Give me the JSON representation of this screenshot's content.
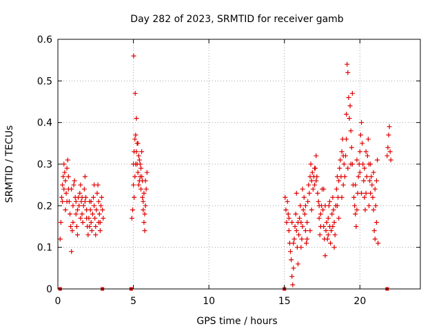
{
  "chart_data": {
    "type": "scatter",
    "title": "Day 282 of 2023, SRMTID for receiver gamb",
    "xlabel": "GPS time / hours",
    "ylabel": "SRMTID / TECUs",
    "xlim": [
      0,
      24
    ],
    "ylim": [
      0,
      0.6
    ],
    "xticks": [
      0,
      5,
      10,
      15,
      20
    ],
    "xtick_labels": [
      "0",
      "5",
      "10",
      "15",
      "20"
    ],
    "yticks": [
      0,
      0.1,
      0.2,
      0.3,
      0.4,
      0.5,
      0.6
    ],
    "ytick_labels": [
      "0",
      "0.1",
      "0.2",
      "0.3",
      "0.4",
      "0.5",
      "0.6"
    ],
    "grid": true,
    "marker": "+",
    "color": "#e00000",
    "series": [
      {
        "name": "SRMTID",
        "points": [
          [
            0.15,
            0.12
          ],
          [
            0.2,
            0.16
          ],
          [
            0.25,
            0.22
          ],
          [
            0.3,
            0.25
          ],
          [
            0.35,
            0.27
          ],
          [
            0.4,
            0.24
          ],
          [
            0.45,
            0.28
          ],
          [
            0.5,
            0.26
          ],
          [
            0.55,
            0.23
          ],
          [
            0.6,
            0.29
          ],
          [
            0.65,
            0.31
          ],
          [
            0.7,
            0.27
          ],
          [
            0.75,
            0.21
          ],
          [
            0.8,
            0.18
          ],
          [
            0.85,
            0.15
          ],
          [
            0.9,
            0.09
          ],
          [
            0.95,
            0.14
          ],
          [
            1.0,
            0.2
          ],
          [
            1.05,
            0.25
          ],
          [
            1.1,
            0.26
          ],
          [
            1.15,
            0.22
          ],
          [
            1.2,
            0.18
          ],
          [
            1.25,
            0.15
          ],
          [
            1.3,
            0.19
          ],
          [
            1.35,
            0.22
          ],
          [
            1.4,
            0.2
          ],
          [
            1.45,
            0.23
          ],
          [
            1.5,
            0.25
          ],
          [
            1.55,
            0.21
          ],
          [
            1.6,
            0.18
          ],
          [
            1.65,
            0.16
          ],
          [
            1.7,
            0.2
          ],
          [
            1.75,
            0.24
          ],
          [
            1.8,
            0.27
          ],
          [
            1.85,
            0.22
          ],
          [
            1.9,
            0.19
          ],
          [
            1.95,
            0.15
          ],
          [
            2.0,
            0.13
          ],
          [
            2.05,
            0.17
          ],
          [
            2.1,
            0.21
          ],
          [
            2.15,
            0.19
          ],
          [
            2.2,
            0.16
          ],
          [
            2.25,
            0.14
          ],
          [
            2.3,
            0.18
          ],
          [
            2.35,
            0.22
          ],
          [
            2.4,
            0.2
          ],
          [
            2.45,
            0.17
          ],
          [
            2.5,
            0.15
          ],
          [
            2.55,
            0.19
          ],
          [
            2.6,
            0.23
          ],
          [
            2.65,
            0.25
          ],
          [
            2.7,
            0.21
          ],
          [
            2.75,
            0.18
          ],
          [
            2.8,
            0.16
          ],
          [
            2.85,
            0.2
          ],
          [
            2.9,
            0.22
          ],
          [
            2.95,
            0.19
          ],
          [
            3.0,
            0.17
          ],
          [
            0.3,
            0.21
          ],
          [
            0.5,
            0.19
          ],
          [
            0.7,
            0.24
          ],
          [
            1.0,
            0.16
          ],
          [
            1.3,
            0.13
          ],
          [
            1.6,
            0.22
          ],
          [
            1.9,
            0.17
          ],
          [
            2.2,
            0.21
          ],
          [
            2.5,
            0.13
          ],
          [
            2.8,
            0.14
          ],
          [
            0.4,
            0.3
          ],
          [
            0.6,
            0.21
          ],
          [
            0.9,
            0.24
          ],
          [
            1.2,
            0.21
          ],
          [
            1.5,
            0.17
          ],
          [
            1.8,
            0.21
          ],
          [
            2.1,
            0.15
          ],
          [
            2.4,
            0.25
          ],
          [
            2.7,
            0.16
          ],
          [
            4.9,
            0.17
          ],
          [
            4.95,
            0.19
          ],
          [
            5.0,
            0.25
          ],
          [
            5.02,
            0.56
          ],
          [
            5.05,
            0.33
          ],
          [
            5.1,
            0.36
          ],
          [
            5.12,
            0.47
          ],
          [
            5.15,
            0.3
          ],
          [
            5.2,
            0.41
          ],
          [
            5.25,
            0.35
          ],
          [
            5.3,
            0.28
          ],
          [
            5.35,
            0.32
          ],
          [
            5.4,
            0.26
          ],
          [
            5.45,
            0.3
          ],
          [
            5.5,
            0.24
          ],
          [
            5.55,
            0.27
          ],
          [
            5.6,
            0.22
          ],
          [
            5.65,
            0.19
          ],
          [
            5.7,
            0.16
          ],
          [
            5.75,
            0.14
          ],
          [
            5.8,
            0.2
          ],
          [
            5.85,
            0.24
          ],
          [
            5.9,
            0.28
          ],
          [
            5.0,
            0.3
          ],
          [
            5.1,
            0.27
          ],
          [
            5.2,
            0.33
          ],
          [
            5.3,
            0.35
          ],
          [
            5.4,
            0.31
          ],
          [
            5.5,
            0.29
          ],
          [
            5.6,
            0.26
          ],
          [
            5.7,
            0.23
          ],
          [
            5.8,
            0.26
          ],
          [
            5.05,
            0.22
          ],
          [
            5.25,
            0.3
          ],
          [
            5.45,
            0.27
          ],
          [
            5.65,
            0.21
          ],
          [
            5.75,
            0.18
          ],
          [
            5.15,
            0.37
          ],
          [
            5.35,
            0.25
          ],
          [
            5.55,
            0.33
          ],
          [
            15.05,
            0.22
          ],
          [
            15.1,
            0.19
          ],
          [
            15.15,
            0.16
          ],
          [
            15.2,
            0.21
          ],
          [
            15.25,
            0.18
          ],
          [
            15.3,
            0.14
          ],
          [
            15.35,
            0.11
          ],
          [
            15.4,
            0.09
          ],
          [
            15.45,
            0.07
          ],
          [
            15.5,
            0.03
          ],
          [
            15.55,
            0.01
          ],
          [
            15.6,
            0.05
          ],
          [
            15.65,
            0.12
          ],
          [
            15.7,
            0.15
          ],
          [
            15.75,
            0.18
          ],
          [
            15.8,
            0.14
          ],
          [
            15.85,
            0.1
          ],
          [
            15.9,
            0.06
          ],
          [
            15.95,
            0.13
          ],
          [
            16.0,
            0.17
          ],
          [
            16.05,
            0.2
          ],
          [
            16.1,
            0.16
          ],
          [
            16.15,
            0.12
          ],
          [
            16.2,
            0.15
          ],
          [
            16.25,
            0.19
          ],
          [
            16.3,
            0.22
          ],
          [
            16.35,
            0.18
          ],
          [
            16.4,
            0.14
          ],
          [
            16.45,
            0.11
          ],
          [
            16.5,
            0.16
          ],
          [
            16.55,
            0.21
          ],
          [
            16.6,
            0.25
          ],
          [
            16.65,
            0.23
          ],
          [
            16.7,
            0.27
          ],
          [
            16.75,
            0.3
          ],
          [
            16.8,
            0.26
          ],
          [
            16.85,
            0.28
          ],
          [
            16.9,
            0.24
          ],
          [
            16.95,
            0.27
          ],
          [
            17.0,
            0.25
          ],
          [
            17.05,
            0.29
          ],
          [
            17.1,
            0.32
          ],
          [
            17.15,
            0.27
          ],
          [
            17.2,
            0.23
          ],
          [
            17.25,
            0.21
          ],
          [
            17.3,
            0.17
          ],
          [
            17.35,
            0.13
          ],
          [
            17.4,
            0.18
          ],
          [
            17.45,
            0.2
          ],
          [
            17.5,
            0.24
          ],
          [
            17.55,
            0.19
          ],
          [
            17.6,
            0.15
          ],
          [
            17.65,
            0.12
          ],
          [
            17.7,
            0.08
          ],
          [
            17.75,
            0.14
          ],
          [
            17.8,
            0.16
          ],
          [
            17.85,
            0.12
          ],
          [
            17.9,
            0.17
          ],
          [
            17.95,
            0.2
          ],
          [
            18.0,
            0.15
          ],
          [
            18.05,
            0.11
          ],
          [
            18.1,
            0.14
          ],
          [
            18.15,
            0.18
          ],
          [
            18.2,
            0.22
          ],
          [
            18.25,
            0.19
          ],
          [
            18.3,
            0.16
          ],
          [
            18.35,
            0.13
          ],
          [
            18.4,
            0.2
          ],
          [
            18.45,
            0.24
          ],
          [
            18.5,
            0.27
          ],
          [
            18.55,
            0.22
          ],
          [
            18.6,
            0.26
          ],
          [
            18.65,
            0.29
          ],
          [
            18.7,
            0.31
          ],
          [
            18.75,
            0.27
          ],
          [
            18.8,
            0.33
          ],
          [
            18.85,
            0.36
          ],
          [
            18.9,
            0.32
          ],
          [
            18.95,
            0.3
          ],
          [
            19.0,
            0.27
          ],
          [
            19.05,
            0.32
          ],
          [
            19.1,
            0.42
          ],
          [
            19.15,
            0.54
          ],
          [
            19.2,
            0.52
          ],
          [
            19.25,
            0.46
          ],
          [
            19.3,
            0.41
          ],
          [
            19.35,
            0.44
          ],
          [
            19.4,
            0.38
          ],
          [
            19.45,
            0.34
          ],
          [
            19.5,
            0.3
          ],
          [
            19.55,
            0.25
          ],
          [
            19.6,
            0.22
          ],
          [
            19.65,
            0.2
          ],
          [
            19.7,
            0.18
          ],
          [
            19.75,
            0.15
          ],
          [
            19.8,
            0.19
          ],
          [
            19.85,
            0.23
          ],
          [
            19.9,
            0.27
          ],
          [
            19.95,
            0.3
          ],
          [
            20.0,
            0.33
          ],
          [
            20.05,
            0.37
          ],
          [
            20.1,
            0.4
          ],
          [
            20.15,
            0.35
          ],
          [
            20.2,
            0.3
          ],
          [
            20.25,
            0.26
          ],
          [
            20.3,
            0.22
          ],
          [
            20.35,
            0.19
          ],
          [
            20.4,
            0.23
          ],
          [
            20.45,
            0.27
          ],
          [
            20.5,
            0.32
          ],
          [
            20.55,
            0.36
          ],
          [
            20.6,
            0.3
          ],
          [
            20.65,
            0.26
          ],
          [
            20.7,
            0.23
          ],
          [
            20.75,
            0.27
          ],
          [
            20.8,
            0.25
          ],
          [
            20.85,
            0.22
          ],
          [
            20.9,
            0.19
          ],
          [
            20.95,
            0.14
          ],
          [
            21.0,
            0.12
          ],
          [
            21.05,
            0.2
          ],
          [
            21.1,
            0.26
          ],
          [
            21.15,
            0.31
          ],
          [
            21.2,
            0.11
          ],
          [
            21.8,
            0.32
          ],
          [
            21.85,
            0.34
          ],
          [
            21.9,
            0.37
          ],
          [
            21.95,
            0.39
          ],
          [
            22.0,
            0.33
          ],
          [
            22.05,
            0.31
          ],
          [
            15.5,
            0.16
          ],
          [
            15.8,
            0.23
          ],
          [
            16.1,
            0.1
          ],
          [
            16.4,
            0.2
          ],
          [
            16.7,
            0.14
          ],
          [
            17.0,
            0.29
          ],
          [
            17.3,
            0.2
          ],
          [
            17.6,
            0.24
          ],
          [
            17.9,
            0.13
          ],
          [
            18.2,
            0.15
          ],
          [
            18.5,
            0.2
          ],
          [
            18.8,
            0.22
          ],
          [
            19.1,
            0.36
          ],
          [
            19.4,
            0.3
          ],
          [
            19.7,
            0.25
          ],
          [
            20.0,
            0.28
          ],
          [
            20.3,
            0.29
          ],
          [
            20.6,
            0.2
          ],
          [
            20.9,
            0.28
          ],
          [
            21.1,
            0.16
          ],
          [
            15.3,
            0.17
          ],
          [
            15.6,
            0.11
          ],
          [
            15.9,
            0.16
          ],
          [
            16.2,
            0.24
          ],
          [
            16.5,
            0.12
          ],
          [
            16.8,
            0.19
          ],
          [
            17.1,
            0.26
          ],
          [
            17.4,
            0.15
          ],
          [
            17.7,
            0.2
          ],
          [
            18.0,
            0.21
          ],
          [
            18.3,
            0.1
          ],
          [
            18.6,
            0.17
          ],
          [
            18.9,
            0.25
          ],
          [
            19.2,
            0.29
          ],
          [
            19.5,
            0.47
          ],
          [
            19.8,
            0.31
          ],
          [
            20.1,
            0.23
          ],
          [
            20.4,
            0.33
          ],
          [
            20.7,
            0.3
          ],
          [
            21.0,
            0.24
          ]
        ]
      }
    ],
    "zero_markers_x": [
      0.15,
      2.95,
      4.85,
      15.0,
      21.8
    ]
  }
}
